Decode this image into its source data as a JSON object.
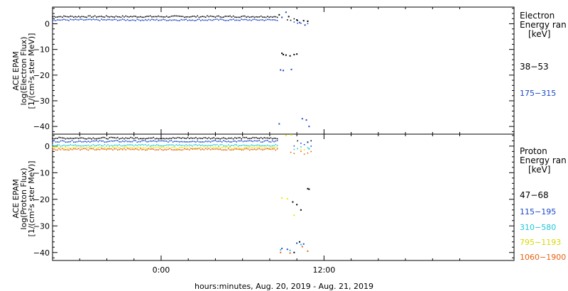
{
  "chart_data": {
    "type": "scatter",
    "xlabel": "hours:minutes, Aug. 20, 2019 - Aug. 21, 2019",
    "x_ticks": [
      {
        "hour": 0,
        "label": "0:00"
      },
      {
        "hour": 12,
        "label": "12:00"
      }
    ],
    "xlim_hours": [
      -8,
      26
    ],
    "panels": [
      {
        "id": "electron",
        "ylabel": [
          "ACE EPAM",
          "log(Electron Flux)",
          "[1/(cm²s ster MeV)]"
        ],
        "ylim": [
          -43,
          6.5
        ],
        "yticks": [
          0,
          -10,
          -20,
          -30,
          -40
        ],
        "ytick_labels": [
          "0",
          "−10",
          "−20",
          "−30",
          "−40"
        ],
        "legend_title": [
          "Electron",
          "Energy ran",
          "[keV]"
        ],
        "series": [
          {
            "name": "38-53",
            "color": "#000000",
            "base": 2.8,
            "outliers": [
              [
                8.9,
                -11.5
              ],
              [
                9.0,
                -12
              ],
              [
                9.2,
                -12.2
              ],
              [
                9.5,
                -12.5
              ],
              [
                9.8,
                -12
              ],
              [
                10.0,
                -11.8
              ],
              [
                8.7,
                3.5
              ],
              [
                9.4,
                2.8
              ],
              [
                10.0,
                1.5
              ],
              [
                10.5,
                1.2
              ],
              [
                10.8,
                1.0
              ]
            ]
          },
          {
            "name": "175-315",
            "color": "#1a47c8",
            "base": 1.5,
            "outliers": [
              [
                8.8,
                -18
              ],
              [
                9.0,
                -18.2
              ],
              [
                9.6,
                -17.8
              ],
              [
                8.7,
                -39
              ],
              [
                10.4,
                -37
              ],
              [
                10.7,
                -37.5
              ],
              [
                10.9,
                -40
              ],
              [
                9.2,
                4.5
              ],
              [
                8.9,
                2.5
              ],
              [
                10.2,
                0.5
              ],
              [
                10.6,
                -0.5
              ]
            ]
          }
        ]
      },
      {
        "id": "proton",
        "ylabel": [
          "ACE EPAM",
          "log(Proton Flux)",
          "[1/(cm²s ster MeV)]"
        ],
        "ylim": [
          -43,
          4.5
        ],
        "yticks": [
          0,
          -10,
          -20,
          -30,
          -40
        ],
        "ytick_labels": [
          "0",
          "−10",
          "−20",
          "−30",
          "−40"
        ],
        "legend_title": [
          "Proton",
          "Energy ran",
          "[keV]"
        ],
        "series": [
          {
            "name": "47-68",
            "color": "#000000",
            "base": 3.0,
            "outliers": [
              [
                9.7,
                -21
              ],
              [
                10.0,
                -22
              ],
              [
                10.3,
                -24
              ],
              [
                10.8,
                -16
              ],
              [
                10.9,
                -16.2
              ],
              [
                9.8,
                -40
              ],
              [
                10.2,
                -36
              ]
            ]
          },
          {
            "name": "115-195",
            "color": "#1a47c8",
            "base": 1.8,
            "outliers": [
              [
                8.9,
                -38.5
              ],
              [
                9.3,
                -38.8
              ],
              [
                10.0,
                -36.5
              ],
              [
                10.5,
                -36.8
              ],
              [
                10.8,
                1.5
              ]
            ]
          },
          {
            "name": "310-580",
            "color": "#20c8d8",
            "base": 0.3,
            "outliers": [
              [
                8.8,
                -39
              ],
              [
                9.5,
                -39.2
              ],
              [
                10.3,
                -37
              ],
              [
                10.9,
                -1
              ]
            ]
          },
          {
            "name": "795-1193",
            "color": "#e8e800",
            "base": -0.6,
            "outliers": [
              [
                8.9,
                -19.5
              ],
              [
                9.3,
                -19.8
              ],
              [
                9.8,
                -26
              ],
              [
                9.2,
                4.0
              ],
              [
                9.6,
                4.2
              ]
            ]
          },
          {
            "name": "1060-1900",
            "color": "#e86010",
            "base": -1.2,
            "outliers": [
              [
                8.8,
                -40
              ],
              [
                9.5,
                -40.2
              ],
              [
                10.4,
                -37.8
              ],
              [
                10.8,
                -39.5
              ]
            ]
          }
        ]
      }
    ]
  }
}
